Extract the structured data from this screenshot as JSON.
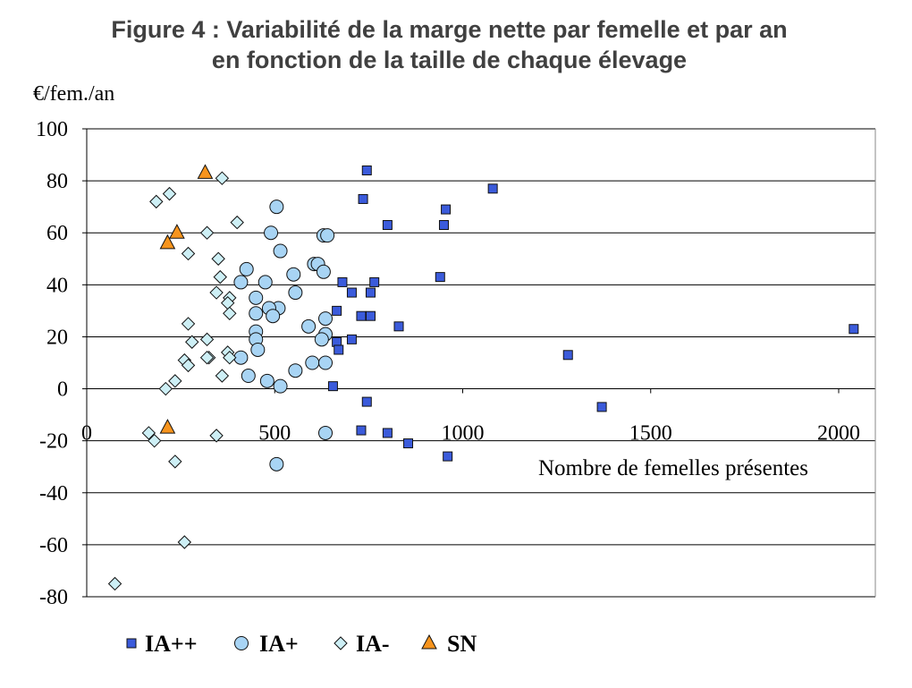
{
  "title_line1": "Figure 4 : Variabilité de la marge nette par femelle et par an",
  "title_line2": "en fonction de la taille de chaque élevage",
  "chart_data": {
    "type": "scatter",
    "title": "Figure 4 : Variabilité de la marge nette par femelle et par an en fonction de la taille de chaque élevage",
    "ylabel": "€/fem./an",
    "xlabel": "Nombre de femelles présentes",
    "xlim": [
      0,
      2000
    ],
    "ylim": [
      -80,
      100
    ],
    "x_ticks": [
      "0",
      "500",
      "1000",
      "1500",
      "2000"
    ],
    "y_ticks": [
      "100",
      "80",
      "60",
      "40",
      "20",
      "0",
      "-20",
      "-40",
      "-60",
      "-80"
    ],
    "grid": "horizontal",
    "legend_position": "bottom",
    "series": [
      {
        "name": "IA++",
        "marker": "square",
        "color": "#3B5BDB",
        "points": [
          [
            745,
            84
          ],
          [
            735,
            73
          ],
          [
            1080,
            77
          ],
          [
            955,
            69
          ],
          [
            800,
            63
          ],
          [
            950,
            63
          ],
          [
            940,
            43
          ],
          [
            680,
            41
          ],
          [
            765,
            41
          ],
          [
            705,
            37
          ],
          [
            755,
            37
          ],
          [
            665,
            30
          ],
          [
            730,
            28
          ],
          [
            755,
            28
          ],
          [
            830,
            24
          ],
          [
            2040,
            23
          ],
          [
            705,
            19
          ],
          [
            665,
            18
          ],
          [
            670,
            15
          ],
          [
            1280,
            13
          ],
          [
            655,
            1
          ],
          [
            745,
            -5
          ],
          [
            1370,
            -7
          ],
          [
            730,
            -16
          ],
          [
            800,
            -17
          ],
          [
            855,
            -21
          ],
          [
            960,
            -26
          ]
        ]
      },
      {
        "name": "IA+",
        "marker": "circle",
        "color": "#A8D4F4",
        "points": [
          [
            505,
            70
          ],
          [
            490,
            60
          ],
          [
            630,
            59
          ],
          [
            640,
            59
          ],
          [
            515,
            53
          ],
          [
            605,
            48
          ],
          [
            615,
            48
          ],
          [
            425,
            46
          ],
          [
            630,
            45
          ],
          [
            550,
            44
          ],
          [
            410,
            41
          ],
          [
            475,
            41
          ],
          [
            450,
            35
          ],
          [
            555,
            37
          ],
          [
            510,
            31
          ],
          [
            485,
            31
          ],
          [
            450,
            29
          ],
          [
            495,
            28
          ],
          [
            635,
            27
          ],
          [
            590,
            24
          ],
          [
            450,
            22
          ],
          [
            635,
            21
          ],
          [
            450,
            19
          ],
          [
            625,
            19
          ],
          [
            455,
            15
          ],
          [
            410,
            12
          ],
          [
            600,
            10
          ],
          [
            635,
            10
          ],
          [
            555,
            7
          ],
          [
            430,
            5
          ],
          [
            480,
            3
          ],
          [
            515,
            1
          ],
          [
            635,
            -17
          ],
          [
            505,
            -29
          ]
        ]
      },
      {
        "name": "IA-",
        "marker": "diamond",
        "color": "#CDEFF5",
        "points": [
          [
            360,
            81
          ],
          [
            220,
            75
          ],
          [
            185,
            72
          ],
          [
            400,
            64
          ],
          [
            320,
            60
          ],
          [
            270,
            52
          ],
          [
            350,
            50
          ],
          [
            355,
            43
          ],
          [
            345,
            37
          ],
          [
            380,
            35
          ],
          [
            375,
            33
          ],
          [
            380,
            29
          ],
          [
            270,
            25
          ],
          [
            280,
            18
          ],
          [
            320,
            19
          ],
          [
            375,
            14
          ],
          [
            380,
            12
          ],
          [
            325,
            12
          ],
          [
            320,
            12
          ],
          [
            260,
            11
          ],
          [
            270,
            9
          ],
          [
            360,
            5
          ],
          [
            235,
            3
          ],
          [
            210,
            0
          ],
          [
            165,
            -17
          ],
          [
            180,
            -20
          ],
          [
            345,
            -18
          ],
          [
            235,
            -28
          ],
          [
            260,
            -59
          ],
          [
            75,
            -75
          ]
        ]
      },
      {
        "name": "SN",
        "marker": "triangle",
        "color": "#F7941D",
        "points": [
          [
            315,
            83
          ],
          [
            240,
            60
          ],
          [
            215,
            56
          ],
          [
            215,
            -15
          ]
        ]
      }
    ]
  }
}
